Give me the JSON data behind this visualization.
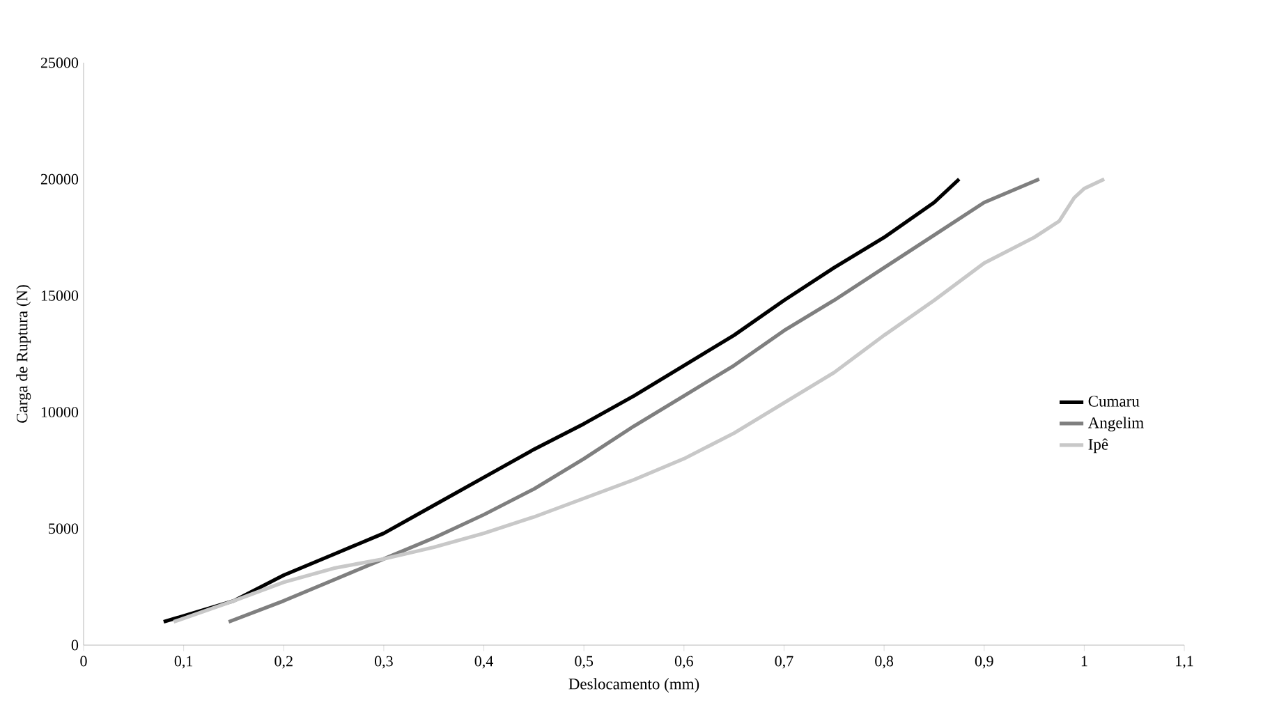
{
  "chart_data": {
    "type": "line",
    "xlabel": "Deslocamento (mm)",
    "ylabel": "Carga de Ruptura (N)",
    "xlim": [
      0,
      1.1
    ],
    "ylim": [
      0,
      25000
    ],
    "xticks": [
      0,
      {
        "value": 0.1,
        "label": "0,1"
      },
      {
        "value": 0.2,
        "label": "0,2"
      },
      {
        "value": 0.3,
        "label": "0,3"
      },
      {
        "value": 0.4,
        "label": "0,4"
      },
      {
        "value": 0.5,
        "label": "0,5"
      },
      {
        "value": 0.6,
        "label": "0,6"
      },
      {
        "value": 0.7,
        "label": "0,7"
      },
      {
        "value": 0.8,
        "label": "0,8"
      },
      {
        "value": 0.9,
        "label": "0,9"
      },
      1,
      {
        "value": 1.1,
        "label": "1,1"
      }
    ],
    "yticks": [
      0,
      5000,
      10000,
      15000,
      20000,
      25000
    ],
    "grid": false,
    "legend": "right",
    "marker": "none",
    "line_style": "solid",
    "series": [
      {
        "name": "Cumaru",
        "color": "#000000",
        "x": [
          0.08,
          0.15,
          0.2,
          0.25,
          0.3,
          0.35,
          0.4,
          0.45,
          0.5,
          0.55,
          0.6,
          0.65,
          0.7,
          0.75,
          0.8,
          0.85,
          0.875
        ],
        "values": [
          1000,
          1900,
          3000,
          3900,
          4800,
          6000,
          7200,
          8400,
          9500,
          10700,
          12000,
          13300,
          14800,
          16200,
          17500,
          19000,
          20000
        ]
      },
      {
        "name": "Angelim",
        "color": "#7f7f7f",
        "x": [
          0.145,
          0.2,
          0.25,
          0.3,
          0.35,
          0.4,
          0.45,
          0.5,
          0.55,
          0.6,
          0.65,
          0.7,
          0.75,
          0.8,
          0.85,
          0.9,
          0.955
        ],
        "values": [
          1000,
          1900,
          2800,
          3700,
          4600,
          5600,
          6700,
          8000,
          9400,
          10700,
          12000,
          13500,
          14800,
          16200,
          17600,
          19000,
          20000
        ]
      },
      {
        "name": "Ipê",
        "color": "#c8c8c8",
        "x": [
          0.09,
          0.15,
          0.2,
          0.25,
          0.3,
          0.35,
          0.4,
          0.45,
          0.5,
          0.55,
          0.6,
          0.65,
          0.7,
          0.75,
          0.8,
          0.85,
          0.9,
          0.95,
          0.975,
          0.99,
          1.0,
          1.02
        ],
        "values": [
          1000,
          1900,
          2700,
          3300,
          3700,
          4200,
          4800,
          5500,
          6300,
          7100,
          8000,
          9100,
          10400,
          11700,
          13300,
          14800,
          16400,
          17500,
          18200,
          19200,
          19600,
          20000
        ]
      }
    ]
  }
}
